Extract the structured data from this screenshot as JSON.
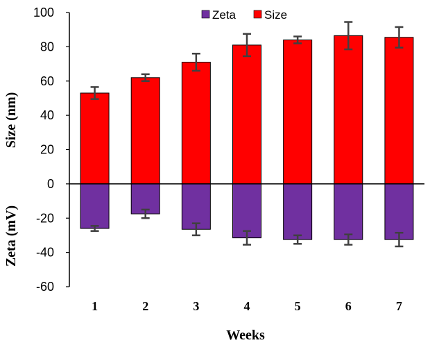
{
  "chart_data": {
    "type": "bar",
    "categories": [
      "1",
      "2",
      "3",
      "4",
      "5",
      "6",
      "7"
    ],
    "series": [
      {
        "name": "Zeta",
        "color": "#7030A0",
        "values": [
          -26,
          -17.5,
          -26.5,
          -31.5,
          -32.5,
          -32.5,
          -32.5
        ],
        "errors": [
          1.5,
          2.5,
          3.5,
          4.0,
          2.5,
          3.0,
          4.0
        ]
      },
      {
        "name": "Size",
        "color": "#FF0000",
        "values": [
          53,
          62,
          71,
          81,
          84,
          86.5,
          85.5
        ],
        "errors": [
          3.5,
          2.0,
          5.0,
          6.5,
          2.0,
          8.0,
          6.0
        ]
      }
    ],
    "ylim": [
      -60,
      100
    ],
    "yticks": [
      -60,
      -40,
      -20,
      0,
      20,
      40,
      60,
      80,
      100
    ],
    "ylabel_upper": "Size (nm)",
    "ylabel_lower": "Zeta  (mV)",
    "xlabel": "Weeks",
    "legend": [
      "Zeta",
      "Size"
    ],
    "legend_position": "top-center",
    "grid": false
  }
}
